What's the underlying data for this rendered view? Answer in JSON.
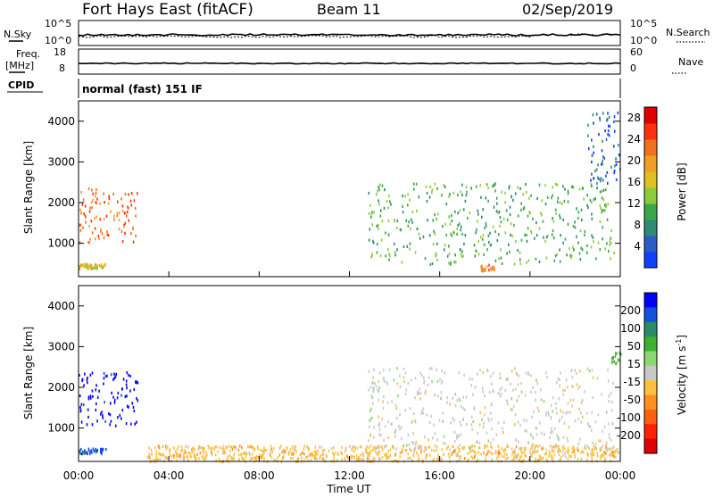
{
  "header": {
    "radar": "Fort Hays East (fitACF)",
    "beam": "Beam 11",
    "date": "02/Sep/2019"
  },
  "top_panels": {
    "nsky_label": "N.Sky",
    "nsky_axis": [
      "10^5",
      "10^0"
    ],
    "nsearch_label": "N.Search",
    "nsearch_axis": [
      "10^5",
      "10^0"
    ],
    "freq_label_1": "Freq.",
    "freq_label_2": "[MHz]",
    "freq_axis": [
      "18",
      "8"
    ],
    "nave_label": "Nave",
    "nave_axis": [
      "60",
      "0"
    ],
    "cpid_label": "CPID",
    "cpid_text": "normal (fast) 151 IF"
  },
  "colors": {
    "power_scale": [
      "#1040ff",
      "#2a5cc8",
      "#2e8a72",
      "#3aa64a",
      "#8ccc3a",
      "#e0c020",
      "#f0a020",
      "#f07020",
      "#ff3010",
      "#e00000"
    ],
    "velocity_scale": [
      "#0000ff",
      "#1450e0",
      "#2a8a6a",
      "#40b030",
      "#8cd870",
      "#c8c8c8",
      "#ffc040",
      "#ff9020",
      "#ff6010",
      "#ff2000",
      "#e00000"
    ]
  },
  "chart_data": [
    {
      "type": "heatmap",
      "name": "power",
      "xlabel": "",
      "ylabel": "Slant Range [km]",
      "xlim": [
        "00:00",
        "24:00"
      ],
      "ylim": [
        180,
        4500
      ],
      "yticks": [
        1000,
        2000,
        3000,
        4000
      ],
      "colorbar_label": "Power [dB]",
      "colorbar_range": [
        0,
        30
      ],
      "colorbar_ticks": [
        4,
        8,
        12,
        16,
        20,
        24,
        28
      ],
      "regions": [
        {
          "t0": 0.0,
          "t1": 2.6,
          "r0": 1050,
          "r1": 2400,
          "level": "high"
        },
        {
          "t0": 0.0,
          "t1": 1.2,
          "r0": 400,
          "r1": 520,
          "level": "medium"
        },
        {
          "t0": 12.8,
          "t1": 23.7,
          "r0": 500,
          "r1": 2500,
          "level": "low-medium"
        },
        {
          "t0": 17.8,
          "t1": 18.4,
          "r0": 350,
          "r1": 500,
          "level": "high"
        },
        {
          "t0": 22.5,
          "t1": 24.0,
          "r0": 2500,
          "r1": 4300,
          "level": "low"
        }
      ]
    },
    {
      "type": "heatmap",
      "name": "velocity",
      "xlabel": "Time UT",
      "ylabel": "Slant Range [km]",
      "xlim": [
        "00:00",
        "24:00"
      ],
      "xticks": [
        "00:00",
        "04:00",
        "08:00",
        "12:00",
        "16:00",
        "20:00",
        "00:00"
      ],
      "ylim": [
        180,
        4500
      ],
      "yticks": [
        1000,
        2000,
        3000,
        4000
      ],
      "colorbar_label": "Velocity [m s-1]",
      "colorbar_ticks": [
        "200",
        "100",
        "50",
        "15",
        "-15",
        "-50",
        "-100",
        "-200"
      ],
      "regions": [
        {
          "t0": 0.0,
          "t1": 2.6,
          "r0": 1050,
          "r1": 2400,
          "velocity": 200
        },
        {
          "t0": 0.0,
          "t1": 1.2,
          "r0": 400,
          "r1": 520,
          "velocity": 100
        },
        {
          "t0": 3.0,
          "t1": 24.0,
          "r0": 200,
          "r1": 600,
          "velocity": -40
        },
        {
          "t0": 12.8,
          "t1": 23.7,
          "r0": 500,
          "r1": 2500,
          "velocity": 0
        },
        {
          "t0": 23.6,
          "t1": 24.0,
          "r0": 2600,
          "r1": 2900,
          "velocity": 50
        }
      ]
    }
  ]
}
